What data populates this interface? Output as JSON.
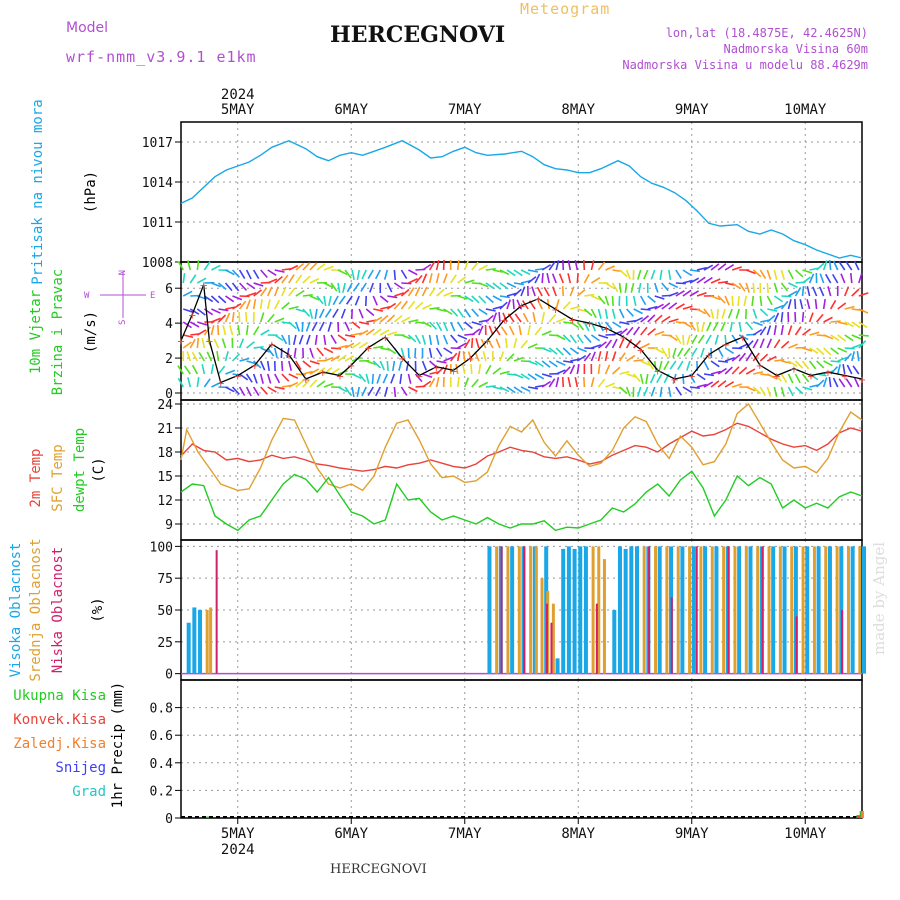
{
  "header": {
    "model_label": "Model",
    "model_name": "wrf-nmm_v3.9.1  e1km",
    "station": "HERCEGNOVI",
    "product": "Meteogram",
    "lonlat": "lon,lat (18.4875E, 42.4625N)",
    "elevation": "Nadmorska Visina 60m",
    "model_elevation": "Nadmorska Visina u modelu 88.4629m",
    "footer_station": "HERCEGNOVI",
    "credit": "made by Angel"
  },
  "colors": {
    "pressure": "#1aa7e8",
    "temp2m": "#e8433a",
    "sfc": "#e0a030",
    "dewpt": "#22cc22",
    "high_cloud": "#1aa7e8",
    "mid_cloud": "#e0a030",
    "low_cloud": "#d0206a",
    "model": "#b050d0",
    "product": "#f0c060"
  },
  "chart_data": [
    {
      "type": "line",
      "id": "pressure",
      "ylabel": [
        "Pritisak na nivou mora",
        "(hPa)"
      ],
      "ylim": [
        1008,
        1018.5
      ],
      "yticks": [
        1008,
        1011,
        1014,
        1017
      ],
      "x_days": [
        "5MAY",
        "6MAY",
        "7MAY",
        "8MAY",
        "9MAY",
        "10MAY"
      ],
      "year": "2024",
      "grid": true,
      "series": [
        {
          "x": [
            4.5,
            4.6,
            4.7,
            4.8,
            4.9,
            5.0,
            5.1,
            5.2,
            5.3,
            5.45,
            5.6,
            5.7,
            5.8,
            5.9,
            6.0,
            6.1,
            6.2,
            6.3,
            6.45,
            6.6,
            6.7,
            6.8,
            6.9,
            7.0,
            7.1,
            7.2,
            7.35,
            7.5,
            7.6,
            7.7,
            7.8,
            7.9,
            8.0,
            8.1,
            8.2,
            8.35,
            8.45,
            8.55,
            8.65,
            8.75,
            8.85,
            8.95,
            9.05,
            9.15,
            9.25,
            9.4,
            9.5,
            9.6,
            9.7,
            9.8,
            9.9,
            10.0,
            10.1,
            10.2,
            10.3,
            10.4,
            10.5
          ],
          "values": [
            1012.4,
            1012.8,
            1013.6,
            1014.4,
            1014.9,
            1015.2,
            1015.5,
            1016.0,
            1016.6,
            1017.1,
            1016.5,
            1015.9,
            1015.6,
            1016.0,
            1016.2,
            1016.0,
            1016.3,
            1016.6,
            1017.1,
            1016.4,
            1015.8,
            1015.9,
            1016.3,
            1016.6,
            1016.2,
            1016.0,
            1016.1,
            1016.3,
            1015.9,
            1015.3,
            1015.0,
            1014.9,
            1014.7,
            1014.7,
            1015.0,
            1015.6,
            1015.2,
            1014.4,
            1013.9,
            1013.6,
            1013.2,
            1012.6,
            1011.8,
            1010.9,
            1010.7,
            1010.8,
            1010.3,
            1010.1,
            1010.4,
            1010.1,
            1009.6,
            1009.3,
            1008.9,
            1008.6,
            1008.3,
            1008.5,
            1008.3
          ]
        }
      ]
    },
    {
      "type": "line",
      "id": "wind",
      "ylabel": [
        "10m Vjetar",
        "Brzina i Pravac",
        "(m/s)"
      ],
      "compass": [
        "N",
        "W",
        "E",
        "S"
      ],
      "ylim": [
        -0.4,
        7.5
      ],
      "yticks": [
        0,
        2,
        4,
        6
      ],
      "series": [
        {
          "name": "speed",
          "x": [
            4.5,
            4.6,
            4.7,
            4.75,
            4.85,
            5.0,
            5.15,
            5.3,
            5.45,
            5.6,
            5.75,
            5.9,
            6.0,
            6.15,
            6.3,
            6.45,
            6.6,
            6.75,
            6.9,
            7.05,
            7.2,
            7.35,
            7.5,
            7.65,
            7.8,
            7.95,
            8.1,
            8.25,
            8.4,
            8.55,
            8.7,
            8.85,
            9.0,
            9.15,
            9.3,
            9.45,
            9.6,
            9.75,
            9.9,
            10.05,
            10.2,
            10.35,
            10.5
          ],
          "values": [
            3.0,
            4.5,
            6.2,
            3.0,
            0.6,
            1.0,
            1.6,
            2.8,
            2.2,
            0.8,
            1.2,
            1.0,
            1.6,
            2.6,
            3.2,
            2.0,
            1.0,
            1.5,
            1.3,
            2.0,
            3.0,
            4.2,
            5.0,
            5.4,
            4.8,
            4.2,
            4.0,
            3.7,
            3.2,
            2.5,
            1.3,
            0.8,
            1.0,
            2.2,
            2.8,
            3.2,
            1.6,
            1.0,
            1.4,
            1.0,
            1.2,
            1.0,
            0.8
          ]
        }
      ]
    },
    {
      "type": "line",
      "id": "temperature",
      "ylabel": [
        "2m Temp",
        "SFC Temp",
        "dewpt Temp",
        "(C)"
      ],
      "ylim": [
        7,
        24.5
      ],
      "yticks": [
        9,
        12,
        15,
        18,
        21,
        24
      ],
      "series": [
        {
          "name": "2m Temp",
          "x": [
            4.5,
            4.6,
            4.7,
            4.8,
            4.9,
            5.0,
            5.1,
            5.2,
            5.3,
            5.4,
            5.5,
            5.6,
            5.7,
            5.8,
            5.9,
            6.0,
            6.1,
            6.2,
            6.3,
            6.4,
            6.5,
            6.6,
            6.7,
            6.8,
            6.9,
            7.0,
            7.1,
            7.2,
            7.3,
            7.4,
            7.5,
            7.6,
            7.7,
            7.8,
            7.9,
            8.0,
            8.1,
            8.2,
            8.3,
            8.4,
            8.5,
            8.6,
            8.7,
            8.8,
            8.9,
            9.0,
            9.1,
            9.2,
            9.3,
            9.4,
            9.5,
            9.6,
            9.7,
            9.8,
            9.9,
            10.0,
            10.1,
            10.2,
            10.3,
            10.4,
            10.5
          ],
          "values": [
            17.5,
            19.0,
            18.2,
            18.0,
            17.0,
            17.2,
            16.8,
            17.0,
            17.6,
            17.2,
            17.4,
            17.0,
            16.5,
            16.3,
            16.0,
            15.8,
            15.6,
            15.8,
            16.2,
            16.0,
            16.4,
            16.6,
            17.0,
            16.6,
            16.2,
            16.0,
            16.5,
            17.5,
            18.0,
            18.6,
            18.2,
            18.0,
            17.4,
            17.2,
            17.4,
            17.0,
            16.5,
            16.8,
            17.6,
            18.2,
            18.8,
            18.6,
            18.0,
            19.0,
            19.8,
            20.6,
            20.0,
            20.2,
            20.8,
            21.6,
            21.2,
            20.4,
            19.6,
            19.0,
            18.6,
            18.8,
            18.2,
            19.0,
            20.4,
            21.0,
            20.6
          ]
        },
        {
          "name": "SFC Temp",
          "x": [
            4.5,
            4.55,
            4.65,
            4.75,
            4.85,
            5.0,
            5.1,
            5.2,
            5.3,
            5.4,
            5.5,
            5.6,
            5.7,
            5.8,
            5.9,
            6.0,
            6.1,
            6.2,
            6.3,
            6.4,
            6.5,
            6.6,
            6.7,
            6.8,
            6.9,
            7.0,
            7.1,
            7.2,
            7.3,
            7.4,
            7.5,
            7.6,
            7.7,
            7.8,
            7.9,
            8.0,
            8.1,
            8.2,
            8.3,
            8.4,
            8.5,
            8.6,
            8.7,
            8.8,
            8.9,
            9.0,
            9.1,
            9.2,
            9.3,
            9.4,
            9.5,
            9.6,
            9.7,
            9.8,
            9.9,
            10.0,
            10.1,
            10.2,
            10.3,
            10.4,
            10.5
          ],
          "values": [
            17.0,
            20.8,
            18.0,
            16.0,
            14.0,
            13.2,
            13.4,
            16.0,
            19.5,
            22.2,
            22.0,
            19.0,
            16.0,
            14.0,
            13.5,
            14.0,
            13.2,
            15.0,
            18.6,
            21.6,
            22.0,
            19.5,
            16.5,
            14.8,
            15.0,
            14.2,
            14.4,
            15.5,
            18.8,
            21.2,
            20.5,
            22.0,
            19.2,
            17.5,
            19.4,
            17.6,
            16.2,
            16.6,
            18.2,
            21.0,
            22.4,
            21.8,
            19.0,
            17.2,
            20.0,
            18.6,
            16.4,
            16.8,
            19.0,
            22.8,
            24.0,
            21.6,
            19.2,
            17.0,
            16.0,
            16.2,
            15.4,
            17.2,
            20.5,
            23.0,
            22.0
          ]
        },
        {
          "name": "dewpt Temp",
          "x": [
            4.5,
            4.6,
            4.7,
            4.8,
            4.9,
            5.0,
            5.1,
            5.2,
            5.3,
            5.4,
            5.5,
            5.6,
            5.7,
            5.8,
            5.9,
            6.0,
            6.1,
            6.2,
            6.3,
            6.4,
            6.5,
            6.6,
            6.7,
            6.8,
            6.9,
            7.0,
            7.1,
            7.2,
            7.3,
            7.4,
            7.5,
            7.6,
            7.7,
            7.8,
            7.9,
            8.0,
            8.1,
            8.2,
            8.3,
            8.4,
            8.5,
            8.6,
            8.7,
            8.8,
            8.9,
            9.0,
            9.1,
            9.2,
            9.3,
            9.4,
            9.5,
            9.6,
            9.7,
            9.8,
            9.9,
            10.0,
            10.1,
            10.2,
            10.3,
            10.4,
            10.5
          ],
          "values": [
            13.0,
            14.0,
            13.8,
            10.0,
            9.0,
            8.2,
            9.5,
            10.0,
            12.0,
            14.0,
            15.2,
            14.6,
            13.0,
            14.8,
            12.6,
            10.5,
            10.0,
            9.0,
            9.5,
            14.0,
            12.0,
            12.2,
            10.5,
            9.5,
            10.0,
            9.5,
            9.0,
            9.8,
            9.0,
            8.5,
            9.0,
            9.0,
            9.4,
            8.2,
            8.6,
            8.5,
            9.0,
            9.5,
            11.0,
            10.5,
            11.5,
            13.0,
            14.0,
            12.5,
            14.5,
            15.6,
            13.5,
            10.0,
            12.0,
            15.0,
            13.8,
            14.8,
            14.0,
            11.0,
            12.0,
            11.0,
            11.6,
            11.0,
            12.4,
            13.0,
            12.5
          ]
        }
      ]
    },
    {
      "type": "bar",
      "id": "cloud",
      "ylabel": [
        "Visoka Oblacnost",
        "Srednja Oblacnost",
        "Niska Oblacnost",
        "(%)"
      ],
      "ylim": [
        -5,
        105
      ],
      "yticks": [
        0,
        25,
        50,
        75,
        100
      ],
      "series": [
        {
          "name": "Visoka Oblacnost",
          "x": [
            4.55,
            4.6,
            4.65,
            7.2,
            7.3,
            7.4,
            7.5,
            7.6,
            7.7,
            7.8,
            7.85,
            7.9,
            7.95,
            8.0,
            8.05,
            8.3,
            8.35,
            8.4,
            8.45,
            8.5,
            8.6,
            8.7,
            8.8,
            8.9,
            9.0,
            9.1,
            9.2,
            9.3,
            9.4,
            9.5,
            9.6,
            9.7,
            9.8,
            9.9,
            10.0,
            10.1,
            10.2,
            10.3,
            10.4,
            10.5
          ],
          "values": [
            40,
            52,
            50,
            100,
            100,
            100,
            100,
            100,
            100,
            12,
            98,
            100,
            98,
            100,
            100,
            50,
            100,
            98,
            100,
            100,
            100,
            100,
            100,
            100,
            100,
            100,
            100,
            100,
            100,
            100,
            100,
            100,
            100,
            100,
            100,
            100,
            100,
            100,
            100,
            100
          ]
        },
        {
          "name": "Srednja Oblacnost",
          "x": [
            4.7,
            4.73,
            7.25,
            7.35,
            7.45,
            7.55,
            7.6,
            7.65,
            7.7,
            7.75,
            8.1,
            8.15,
            8.2,
            8.55,
            8.65,
            8.75,
            8.85,
            8.95,
            9.05,
            9.15,
            9.25,
            9.35,
            9.45,
            9.55,
            9.65,
            9.75,
            9.85,
            9.95,
            10.05,
            10.15,
            10.25,
            10.35,
            10.45
          ],
          "values": [
            50,
            52,
            100,
            100,
            100,
            100,
            100,
            75,
            65,
            55,
            100,
            100,
            90,
            100,
            100,
            100,
            100,
            100,
            100,
            100,
            100,
            100,
            100,
            100,
            100,
            100,
            100,
            100,
            100,
            100,
            100,
            100,
            100
          ]
        },
        {
          "name": "Niska Oblacnost",
          "x": [
            4.77,
            7.28,
            7.48,
            7.68,
            7.72,
            8.12,
            8.58,
            8.78,
            9.0,
            9.28,
            9.58,
            9.88,
            10.28
          ],
          "values": [
            97,
            100,
            100,
            55,
            40,
            55,
            100,
            60,
            100,
            100,
            100,
            45,
            50
          ]
        }
      ]
    },
    {
      "type": "bar",
      "id": "precip",
      "ylabel": [
        "Ukupna Kisa",
        "Konvek.Kisa",
        "Zaledj.Kisa",
        "Snijeg",
        "Grad",
        "1hr Precip (mm)"
      ],
      "ylim": [
        0,
        1.0
      ],
      "yticks": [
        0,
        0.2,
        0.4,
        0.6,
        0.8
      ],
      "series": [
        {
          "name": "Ukupna Kisa",
          "x": [
            4.72,
            10.45,
            10.48
          ],
          "values": [
            0.01,
            0.02,
            0.05
          ]
        },
        {
          "name": "Konvek.Kisa",
          "x": [
            10.46
          ],
          "values": [
            0.02
          ]
        },
        {
          "name": "Zaledj.Kisa",
          "x": [
            10.49
          ],
          "values": [
            0.05
          ]
        }
      ]
    }
  ]
}
